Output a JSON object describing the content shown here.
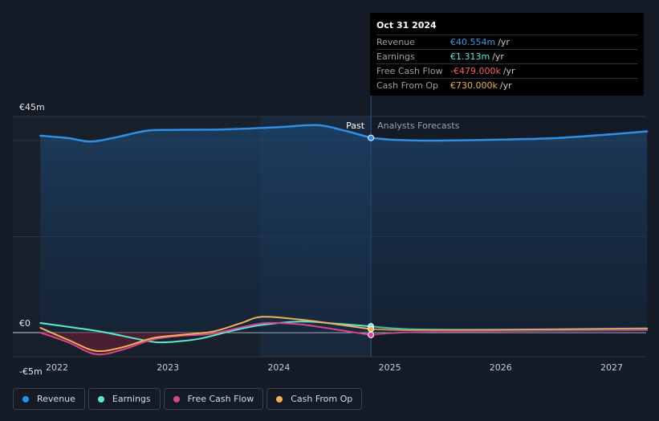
{
  "tooltip": {
    "date": "Oct 31 2024",
    "rows": [
      {
        "label": "Revenue",
        "value": "€40.554m",
        "unit": "/yr",
        "color": "#3b9be8"
      },
      {
        "label": "Earnings",
        "value": "€1.313m",
        "unit": "/yr",
        "color": "#5ee8d0"
      },
      {
        "label": "Free Cash Flow",
        "value": "-€479.000k",
        "unit": "/yr",
        "color": "#ff5a6a"
      },
      {
        "label": "Cash From Op",
        "value": "€730.000k",
        "unit": "/yr",
        "color": "#f0b05a"
      }
    ]
  },
  "labels": {
    "past": "Past",
    "forecast": "Analysts Forecasts"
  },
  "legend": [
    {
      "label": "Revenue",
      "color": "#2e8fe6"
    },
    {
      "label": "Earnings",
      "color": "#5ee8d0"
    },
    {
      "label": "Free Cash Flow",
      "color": "#d5468c"
    },
    {
      "label": "Cash From Op",
      "color": "#f0b05a"
    }
  ],
  "chart_data": {
    "type": "line",
    "y_tick_labels": [
      "€45m",
      "€0",
      "-€5m"
    ],
    "y_ticks": [
      45,
      0,
      -5
    ],
    "ylim": [
      -5,
      45
    ],
    "xlim": [
      2021.85,
      2027.32
    ],
    "x_tick_labels": [
      "2022",
      "2023",
      "2024",
      "2025",
      "2026",
      "2027"
    ],
    "x_ticks": [
      2022,
      2023,
      2024,
      2025,
      2026,
      2027
    ],
    "past_end": 2024.83,
    "highlight_start": 2023.83,
    "series": [
      {
        "name": "Revenue",
        "color": "#2e8fe6",
        "points": [
          [
            2021.85,
            41.0
          ],
          [
            2022.1,
            40.5
          ],
          [
            2022.3,
            39.8
          ],
          [
            2022.5,
            40.5
          ],
          [
            2022.8,
            42.0
          ],
          [
            2023.0,
            42.2
          ],
          [
            2023.5,
            42.3
          ],
          [
            2024.0,
            42.8
          ],
          [
            2024.35,
            43.2
          ],
          [
            2024.6,
            42.0
          ],
          [
            2024.83,
            40.55
          ],
          [
            2025.0,
            40.2
          ],
          [
            2025.25,
            40.0
          ],
          [
            2025.5,
            40.0
          ],
          [
            2026.0,
            40.2
          ],
          [
            2026.5,
            40.5
          ],
          [
            2027.0,
            41.3
          ],
          [
            2027.32,
            41.9
          ]
        ]
      },
      {
        "name": "Earnings",
        "color": "#5ee8d0",
        "points": [
          [
            2021.85,
            2.0
          ],
          [
            2022.1,
            1.2
          ],
          [
            2022.4,
            0.2
          ],
          [
            2022.7,
            -1.2
          ],
          [
            2022.9,
            -2.0
          ],
          [
            2023.1,
            -1.8
          ],
          [
            2023.3,
            -1.2
          ],
          [
            2023.6,
            0.5
          ],
          [
            2023.85,
            1.6
          ],
          [
            2024.2,
            2.3
          ],
          [
            2024.5,
            1.9
          ],
          [
            2024.83,
            1.31
          ],
          [
            2025.2,
            0.7
          ],
          [
            2026.0,
            0.6
          ],
          [
            2027.32,
            0.8
          ]
        ]
      },
      {
        "name": "Free Cash Flow",
        "color": "#d5468c",
        "points": [
          [
            2021.85,
            0.0
          ],
          [
            2022.1,
            -2.0
          ],
          [
            2022.35,
            -4.5
          ],
          [
            2022.6,
            -3.5
          ],
          [
            2022.85,
            -1.5
          ],
          [
            2023.1,
            -0.7
          ],
          [
            2023.4,
            -0.2
          ],
          [
            2023.7,
            1.3
          ],
          [
            2023.9,
            2.0
          ],
          [
            2024.2,
            1.7
          ],
          [
            2024.5,
            0.7
          ],
          [
            2024.83,
            -0.48
          ],
          [
            2025.2,
            0.1
          ],
          [
            2026.0,
            0.3
          ],
          [
            2027.32,
            0.5
          ]
        ]
      },
      {
        "name": "Cash From Op",
        "color": "#f0b05a",
        "points": [
          [
            2021.85,
            1.0
          ],
          [
            2022.1,
            -1.5
          ],
          [
            2022.35,
            -3.8
          ],
          [
            2022.6,
            -3.0
          ],
          [
            2022.85,
            -1.2
          ],
          [
            2023.1,
            -0.5
          ],
          [
            2023.4,
            0.2
          ],
          [
            2023.65,
            1.9
          ],
          [
            2023.85,
            3.3
          ],
          [
            2024.2,
            2.7
          ],
          [
            2024.5,
            1.8
          ],
          [
            2024.83,
            0.73
          ],
          [
            2025.2,
            0.5
          ],
          [
            2026.0,
            0.6
          ],
          [
            2027.32,
            0.9
          ]
        ]
      }
    ]
  }
}
